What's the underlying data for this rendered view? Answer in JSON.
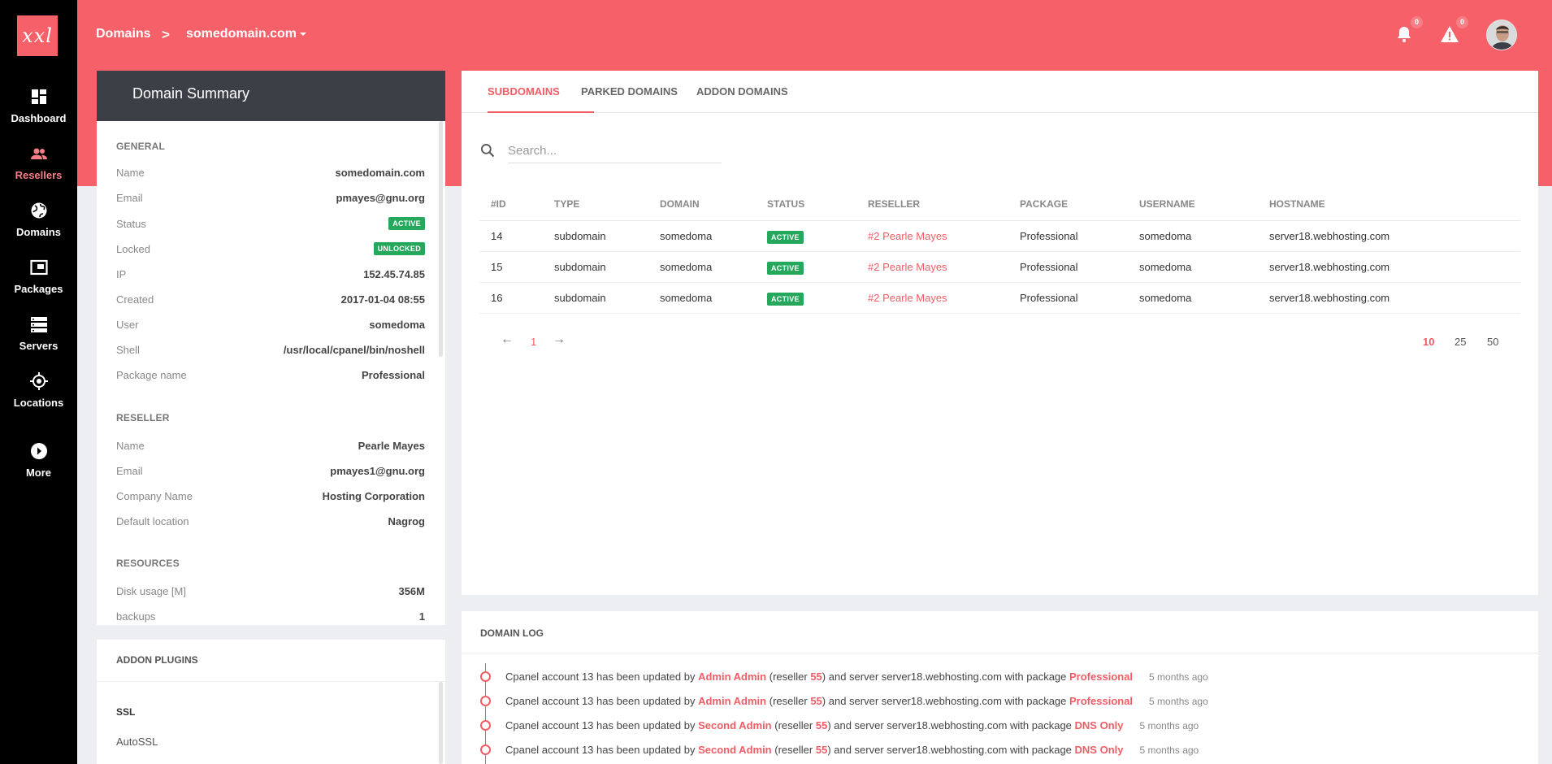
{
  "logo": "xxl",
  "nav": [
    {
      "label": "Dashboard",
      "icon": "dashboard-icon"
    },
    {
      "label": "Resellers",
      "icon": "resellers-icon"
    },
    {
      "label": "Domains",
      "icon": "globe-icon"
    },
    {
      "label": "Packages",
      "icon": "packages-icon"
    },
    {
      "label": "Servers",
      "icon": "servers-icon"
    },
    {
      "label": "Locations",
      "icon": "location-icon"
    },
    {
      "label": "More",
      "icon": "more-icon"
    }
  ],
  "header": {
    "crumb_root": "Domains",
    "crumb_sep": ">",
    "crumb_current": "somedomain.com",
    "notifications_count": "0",
    "alerts_count": "0"
  },
  "summary": {
    "title": "Domain Summary",
    "general_title": "GENERAL",
    "general": [
      {
        "k": "Name",
        "v": "somedomain.com"
      },
      {
        "k": "Email",
        "v": "pmayes@gnu.org"
      },
      {
        "k": "Status",
        "v": "ACTIVE"
      },
      {
        "k": "Locked",
        "v": "UNLOCKED"
      },
      {
        "k": "IP",
        "v": "152.45.74.85"
      },
      {
        "k": "Created",
        "v": "2017-01-04 08:55"
      },
      {
        "k": "User",
        "v": "somedoma"
      },
      {
        "k": "Shell",
        "v": "/usr/local/cpanel/bin/noshell"
      },
      {
        "k": "Package name",
        "v": "Professional"
      }
    ],
    "reseller_title": "RESELLER",
    "reseller": [
      {
        "k": "Name",
        "v": "Pearle Mayes"
      },
      {
        "k": "Email",
        "v": "pmayes1@gnu.org"
      },
      {
        "k": "Company Name",
        "v": "Hosting Corporation"
      },
      {
        "k": "Default location",
        "v": "Nagrog"
      }
    ],
    "resources_title": "RESOURCES",
    "resources": [
      {
        "k": "Disk usage [M]",
        "v": "356M"
      },
      {
        "k": "backups",
        "v": "1"
      }
    ]
  },
  "addon": {
    "title": "ADDON PLUGINS",
    "group": "SSL",
    "item": "AutoSSL"
  },
  "tabs": [
    "SUBDOMAINS",
    "PARKED DOMAINS",
    "ADDON DOMAINS"
  ],
  "search": {
    "placeholder": "Search..."
  },
  "table": {
    "headers": [
      "#ID",
      "TYPE",
      "DOMAIN",
      "STATUS",
      "RESELLER",
      "PACKAGE",
      "USERNAME",
      "HOSTNAME"
    ],
    "rows": [
      [
        "14",
        "subdomain",
        "somedoma",
        "ACTIVE",
        "#2 Pearle Mayes",
        "Professional",
        "somedoma",
        "server18.webhosting.com"
      ],
      [
        "15",
        "subdomain",
        "somedoma",
        "ACTIVE",
        "#2 Pearle Mayes",
        "Professional",
        "somedoma",
        "server18.webhosting.com"
      ],
      [
        "16",
        "subdomain",
        "somedoma",
        "ACTIVE",
        "#2 Pearle Mayes",
        "Professional",
        "somedoma",
        "server18.webhosting.com"
      ]
    ]
  },
  "pager": {
    "prev": "←",
    "page": "1",
    "next": "→",
    "sizes": [
      "10",
      "25",
      "50"
    ]
  },
  "log": {
    "title": "DOMAIN LOG",
    "entries": [
      {
        "pre": "Cpanel account 13 has been updated by",
        "user": "Admin Admin",
        "mid1": "(reseller",
        "reseller": "55",
        "mid2": ") and server server18.webhosting.com with package",
        "package": "Professional",
        "time": "5 months ago"
      },
      {
        "pre": "Cpanel account 13 has been updated by",
        "user": "Admin Admin",
        "mid1": "(reseller",
        "reseller": "55",
        "mid2": ") and server server18.webhosting.com with package",
        "package": "Professional",
        "time": "5 months ago"
      },
      {
        "pre": "Cpanel account 13 has been updated by",
        "user": "Second Admin",
        "mid1": "(reseller",
        "reseller": "55",
        "mid2": ") and server server18.webhosting.com with package",
        "package": "DNS Only",
        "time": "5 months ago"
      },
      {
        "pre": "Cpanel account 13 has been updated by",
        "user": "Second Admin",
        "mid1": "(reseller",
        "reseller": "55",
        "mid2": ") and server server18.webhosting.com with package",
        "package": "DNS Only",
        "time": "5 months ago"
      }
    ]
  }
}
